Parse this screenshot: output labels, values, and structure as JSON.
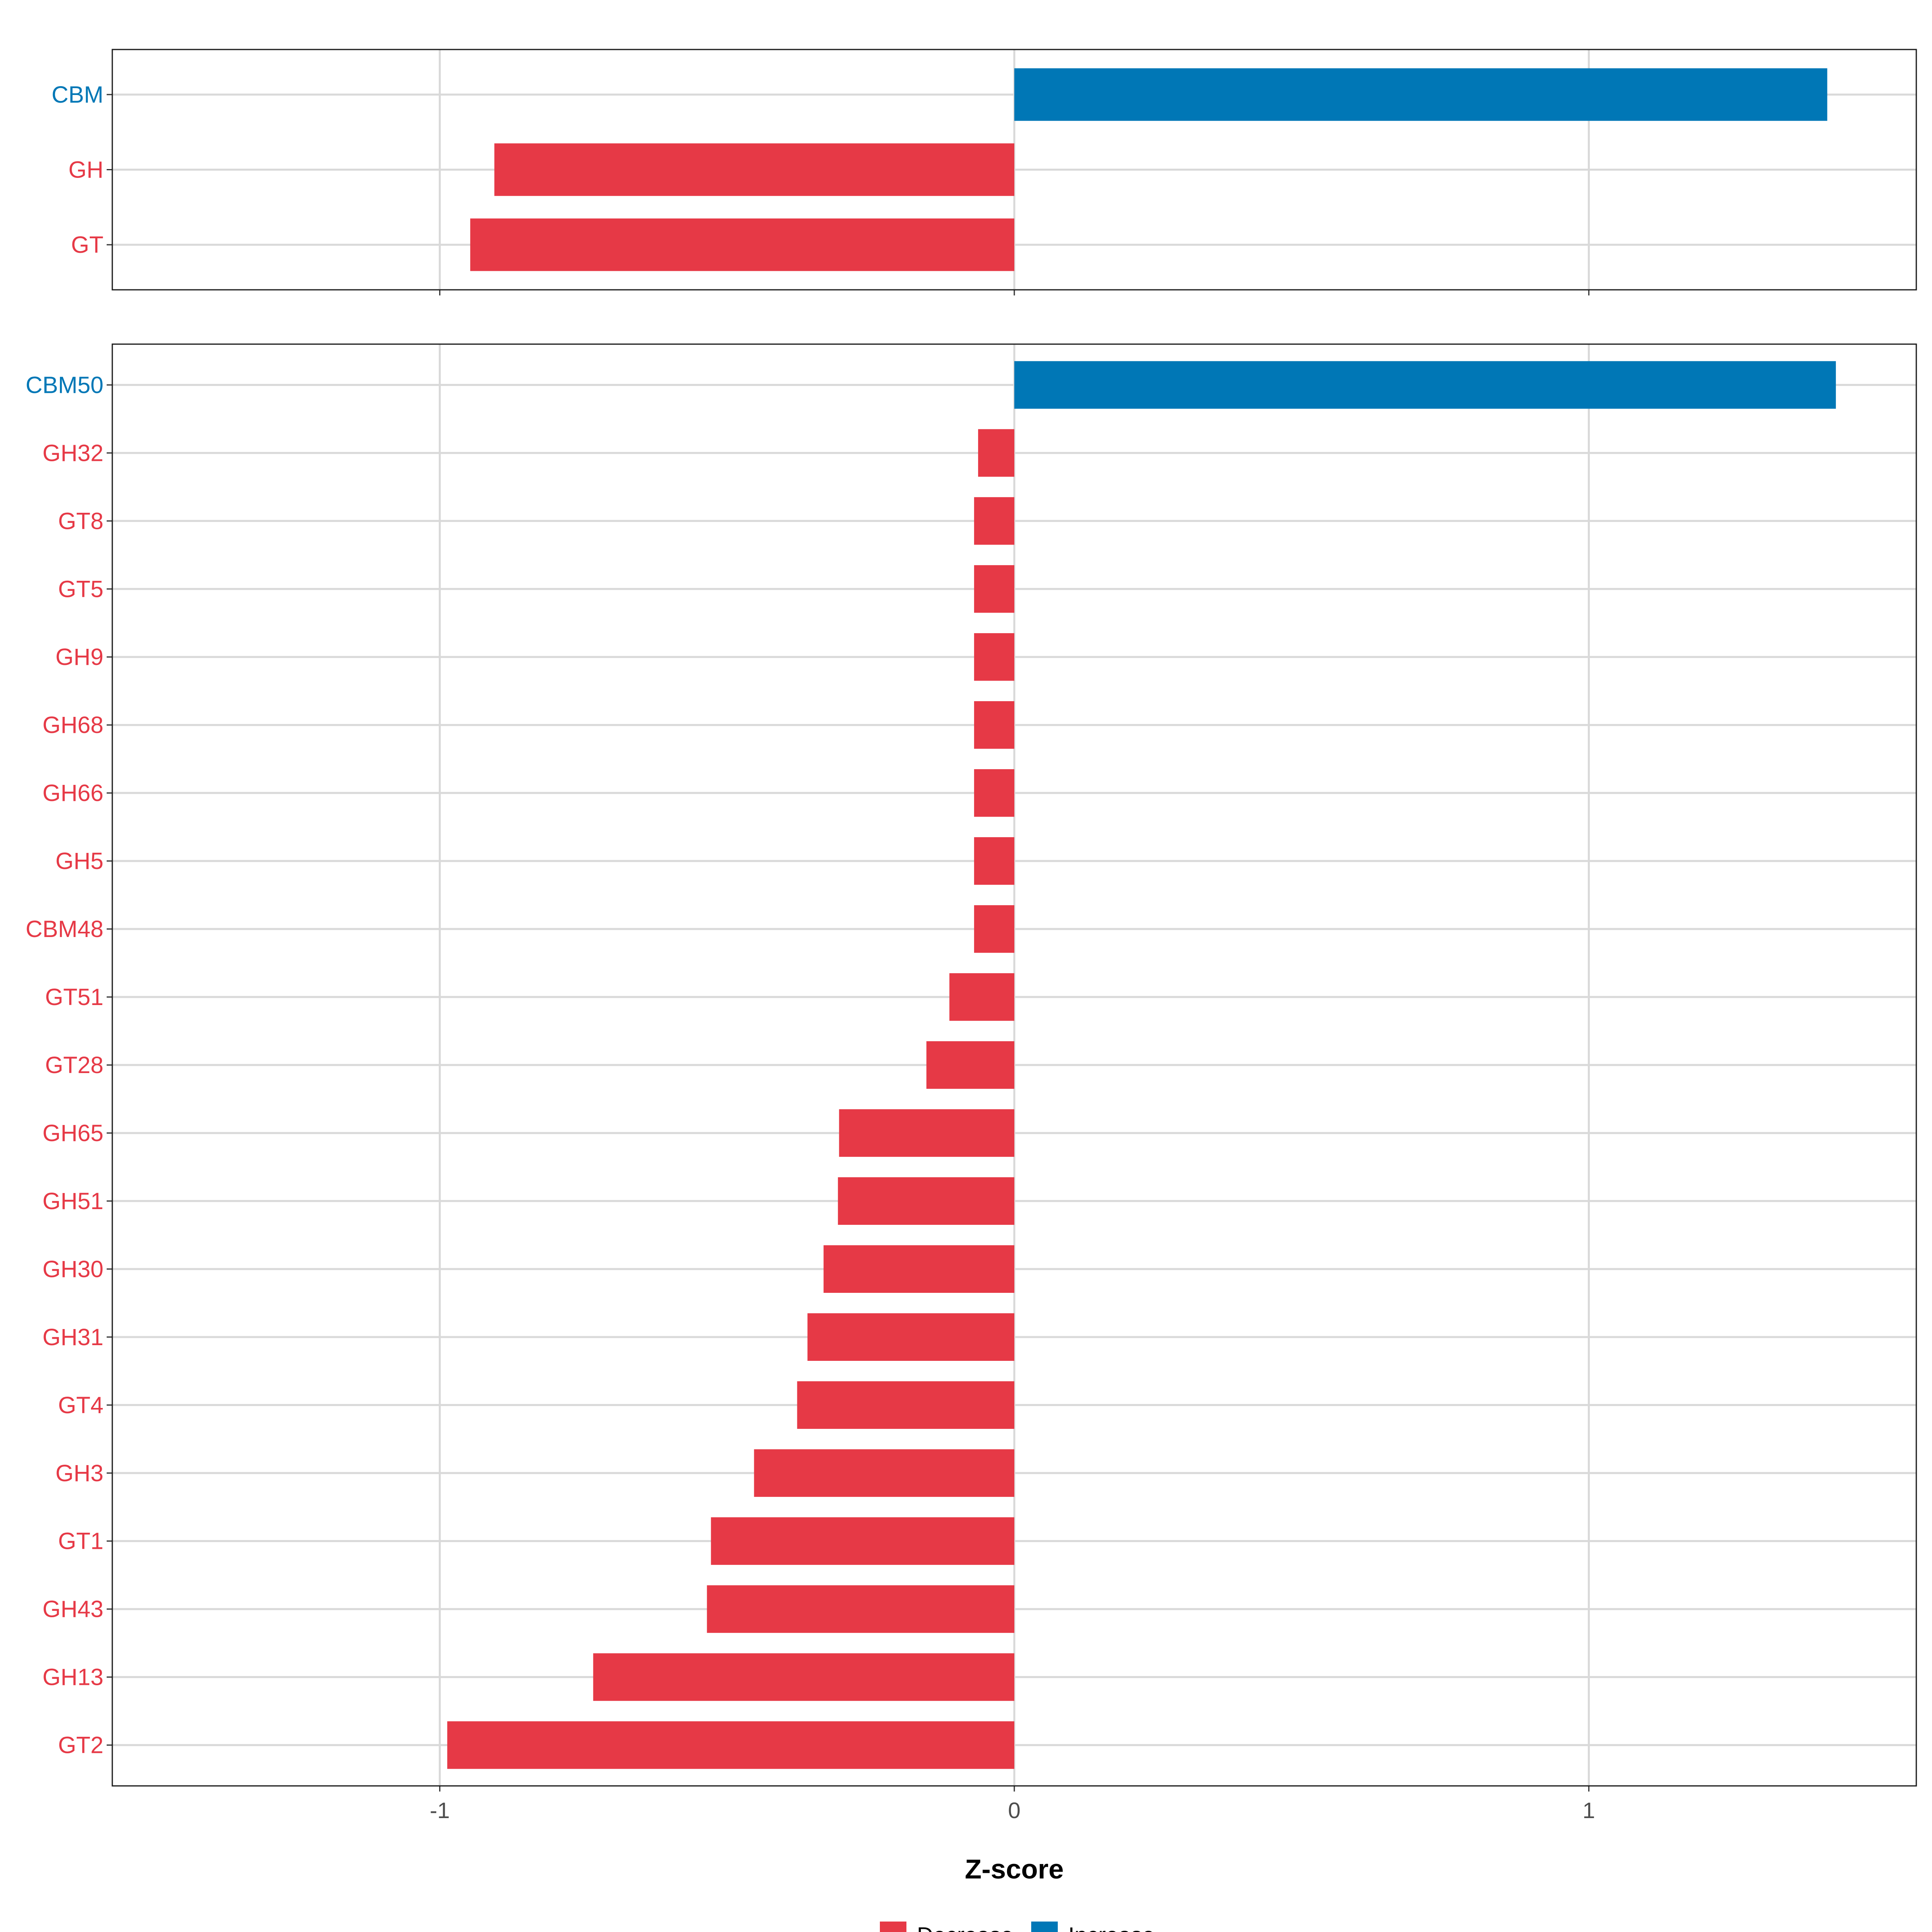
{
  "chart_data": {
    "type": "bar",
    "orientation": "horizontal",
    "xlabel": "Z-score",
    "xlim": [
      -1.57,
      1.57
    ],
    "x_ticks": [
      -1,
      0,
      1
    ],
    "x_tick_labels": [
      "-1",
      "0",
      "1"
    ],
    "grid": true,
    "legend": {
      "placement": "bottom",
      "entries": [
        {
          "label": "Decrease",
          "color": "#E63946"
        },
        {
          "label": "Increase",
          "color": "#0077B6"
        }
      ]
    },
    "colors": {
      "Decrease": "#E63946",
      "Increase": "#0077B6"
    },
    "panels": [
      {
        "categories": [
          "CBM",
          "GH",
          "GT"
        ],
        "values": [
          1.415,
          -0.905,
          -0.947
        ],
        "direction": [
          "Increase",
          "Decrease",
          "Decrease"
        ]
      },
      {
        "categories": [
          "CBM50",
          "GH32",
          "GT8",
          "GT5",
          "GH9",
          "GH68",
          "GH66",
          "GH5",
          "CBM48",
          "GT51",
          "GT28",
          "GH65",
          "GH51",
          "GH30",
          "GH31",
          "GT4",
          "GH3",
          "GT1",
          "GH43",
          "GH13",
          "GT2"
        ],
        "values": [
          1.43,
          -0.063,
          -0.07,
          -0.07,
          -0.07,
          -0.07,
          -0.07,
          -0.07,
          -0.07,
          -0.113,
          -0.153,
          -0.305,
          -0.307,
          -0.332,
          -0.36,
          -0.378,
          -0.453,
          -0.528,
          -0.535,
          -0.733,
          -0.987
        ],
        "direction": [
          "Increase",
          "Decrease",
          "Decrease",
          "Decrease",
          "Decrease",
          "Decrease",
          "Decrease",
          "Decrease",
          "Decrease",
          "Decrease",
          "Decrease",
          "Decrease",
          "Decrease",
          "Decrease",
          "Decrease",
          "Decrease",
          "Decrease",
          "Decrease",
          "Decrease",
          "Decrease",
          "Decrease"
        ]
      }
    ]
  }
}
